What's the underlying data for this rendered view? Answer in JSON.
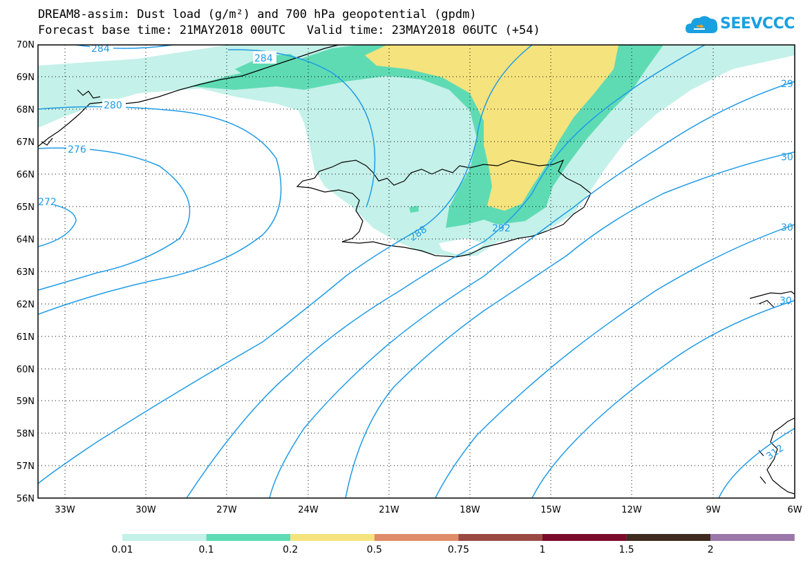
{
  "title": {
    "line1": "DREAM8-assim: Dust load (g/m²) and 700 hPa geopotential (gpdm)",
    "line2": "Forecast base time: 21MAY2018 00UTC   Valid time: 23MAY2018 06UTC (+54)"
  },
  "logo": {
    "text": "SEEVCCC"
  },
  "axes": {
    "lat_labels": [
      "70N",
      "69N",
      "68N",
      "67N",
      "66N",
      "65N",
      "64N",
      "63N",
      "62N",
      "61N",
      "60N",
      "59N",
      "58N",
      "57N",
      "56N"
    ],
    "lon_labels": [
      "33W",
      "30W",
      "27W",
      "24W",
      "21W",
      "18W",
      "15W",
      "12W",
      "9W",
      "6W"
    ]
  },
  "contours": {
    "color": "#1e9be6",
    "labels": [
      "284",
      "284",
      "280",
      "276",
      "272",
      "288",
      "292",
      "29",
      "30",
      "30",
      "30",
      "312"
    ]
  },
  "colorbar": {
    "colors": [
      "#c4f1e9",
      "#5fdbb4",
      "#f5e37e",
      "#e08b68",
      "#9a4a43",
      "#7a0b2a",
      "#3f2a1f",
      "#9a77a8"
    ],
    "labels": [
      "0.01",
      "0.1",
      "0.2",
      "0.5",
      "0.75",
      "1",
      "1.5",
      "2"
    ]
  },
  "colors": {
    "coast": "#000000",
    "grid": "#000000"
  }
}
